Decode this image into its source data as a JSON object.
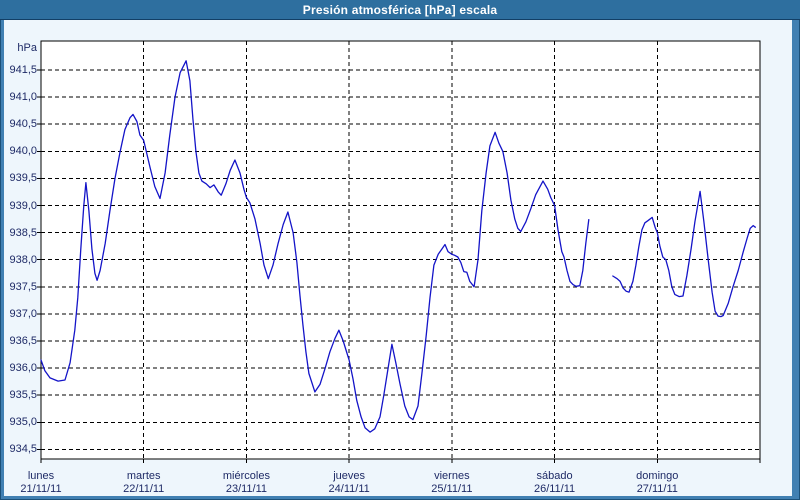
{
  "window": {
    "title": "Presión atmosférica [hPa] escala"
  },
  "colors": {
    "frame": "#4180b2",
    "title_bg": "#2e6f9f",
    "title_text": "#ffffff",
    "chart_bg": "#eef6fc",
    "plot_bg": "#ffffff",
    "grid": "#000000",
    "axis_text": "#1e2a66",
    "line": "#1414c8"
  },
  "chart_data": {
    "type": "line",
    "title": "Presión atmosférica [hPa] escala",
    "y_unit_label": "hPa",
    "ylabel": "hPa",
    "xlabel": "",
    "ylim": [
      934.32,
      942.03
    ],
    "grid": "dashed",
    "legend_position": "none",
    "y_ticks": [
      {
        "value": 941.5,
        "label": "941,5"
      },
      {
        "value": 941.0,
        "label": "941,0"
      },
      {
        "value": 940.5,
        "label": "940,5"
      },
      {
        "value": 940.0,
        "label": "940,0"
      },
      {
        "value": 939.5,
        "label": "939,5"
      },
      {
        "value": 939.0,
        "label": "939,0"
      },
      {
        "value": 938.5,
        "label": "938,5"
      },
      {
        "value": 938.0,
        "label": "938,0"
      },
      {
        "value": 937.5,
        "label": "937,5"
      },
      {
        "value": 937.0,
        "label": "937,0"
      },
      {
        "value": 936.5,
        "label": "936,5"
      },
      {
        "value": 936.0,
        "label": "936,0"
      },
      {
        "value": 935.5,
        "label": "935,5"
      },
      {
        "value": 935.0,
        "label": "935,0"
      },
      {
        "value": 934.5,
        "label": "934,5"
      }
    ],
    "x_days": [
      {
        "name": "lunes",
        "date": "21/11/11"
      },
      {
        "name": "martes",
        "date": "22/11/11"
      },
      {
        "name": "miércoles",
        "date": "23/11/11"
      },
      {
        "name": "jueves",
        "date": "24/11/11"
      },
      {
        "name": "viernes",
        "date": "25/11/11"
      },
      {
        "name": "sábado",
        "date": "26/11/11"
      },
      {
        "name": "domingo",
        "date": "27/11/11"
      }
    ],
    "days_span": 7,
    "x_unit": "hours_since_monday_00h",
    "segments": [
      [
        [
          0,
          936.15
        ],
        [
          0.9,
          935.95
        ],
        [
          2.1,
          935.82
        ],
        [
          4,
          935.76
        ],
        [
          5.6,
          935.78
        ],
        [
          6.8,
          936.1
        ],
        [
          7.9,
          936.7
        ],
        [
          8.6,
          937.3
        ],
        [
          9.3,
          938.2
        ],
        [
          10,
          939.0
        ],
        [
          10.5,
          939.42
        ],
        [
          11.2,
          938.9
        ],
        [
          11.9,
          938.2
        ],
        [
          12.6,
          937.75
        ],
        [
          13.1,
          937.62
        ],
        [
          13.8,
          937.8
        ],
        [
          15,
          938.3
        ],
        [
          16.1,
          938.9
        ],
        [
          17.3,
          939.5
        ],
        [
          18.5,
          940.0
        ],
        [
          19.6,
          940.4
        ],
        [
          20.8,
          940.62
        ],
        [
          21.5,
          940.68
        ],
        [
          22.4,
          940.55
        ],
        [
          23.1,
          940.3
        ],
        [
          24,
          940.2
        ],
        [
          25.5,
          939.7
        ],
        [
          26.6,
          939.35
        ],
        [
          27.8,
          939.13
        ],
        [
          29,
          939.6
        ],
        [
          30.1,
          940.3
        ],
        [
          31.3,
          941.0
        ],
        [
          32.5,
          941.45
        ],
        [
          33.9,
          941.67
        ],
        [
          34.8,
          941.3
        ],
        [
          35.5,
          940.6
        ],
        [
          36.2,
          940.0
        ],
        [
          36.9,
          939.6
        ],
        [
          37.6,
          939.45
        ],
        [
          38.6,
          939.4
        ],
        [
          39.5,
          939.33
        ],
        [
          40.4,
          939.38
        ],
        [
          41.4,
          939.25
        ],
        [
          42.1,
          939.19
        ],
        [
          43.2,
          939.4
        ],
        [
          44.2,
          939.65
        ],
        [
          45.3,
          939.84
        ],
        [
          46.5,
          939.6
        ],
        [
          47.4,
          939.3
        ],
        [
          48,
          939.15
        ],
        [
          48.8,
          939.05
        ],
        [
          50,
          938.75
        ],
        [
          51.2,
          938.3
        ],
        [
          52.1,
          937.9
        ],
        [
          53.1,
          937.65
        ],
        [
          54.2,
          937.9
        ],
        [
          55.4,
          938.3
        ],
        [
          56.6,
          938.65
        ],
        [
          57.7,
          938.88
        ],
        [
          58.9,
          938.5
        ],
        [
          59.8,
          937.95
        ],
        [
          60.5,
          937.35
        ],
        [
          61.2,
          936.8
        ],
        [
          61.9,
          936.3
        ],
        [
          62.6,
          935.9
        ],
        [
          64,
          935.56
        ],
        [
          65.2,
          935.7
        ],
        [
          66.4,
          936.0
        ],
        [
          67.5,
          936.3
        ],
        [
          68.7,
          936.55
        ],
        [
          69.6,
          936.7
        ],
        [
          70.6,
          936.5
        ],
        [
          72,
          936.15
        ],
        [
          72.9,
          935.8
        ],
        [
          73.8,
          935.4
        ],
        [
          74.8,
          935.1
        ],
        [
          75.7,
          934.9
        ],
        [
          76.9,
          934.82
        ],
        [
          78,
          934.88
        ],
        [
          79.2,
          935.1
        ],
        [
          80.1,
          935.5
        ],
        [
          81.1,
          936.0
        ],
        [
          82,
          936.44
        ],
        [
          82.9,
          936.1
        ],
        [
          83.9,
          935.7
        ],
        [
          85,
          935.3
        ],
        [
          86,
          935.1
        ],
        [
          86.9,
          935.05
        ],
        [
          88.1,
          935.3
        ],
        [
          89,
          935.9
        ],
        [
          90,
          936.6
        ],
        [
          90.9,
          937.3
        ],
        [
          91.8,
          937.9
        ],
        [
          92.8,
          938.1
        ],
        [
          93.7,
          938.2
        ],
        [
          94.4,
          938.28
        ],
        [
          95.1,
          938.15
        ],
        [
          96,
          938.1
        ],
        [
          96.7,
          938.08
        ],
        [
          97.4,
          938.05
        ],
        [
          98.1,
          937.95
        ],
        [
          98.8,
          937.78
        ],
        [
          99.5,
          937.77
        ],
        [
          100.2,
          937.6
        ],
        [
          101.2,
          937.5
        ],
        [
          102.1,
          938.0
        ],
        [
          103,
          938.9
        ],
        [
          104,
          939.6
        ],
        [
          104.9,
          940.1
        ],
        [
          106.1,
          940.35
        ],
        [
          107,
          940.15
        ],
        [
          107.9,
          940.0
        ],
        [
          108.9,
          939.6
        ],
        [
          109.8,
          939.1
        ],
        [
          110.7,
          938.75
        ],
        [
          111.4,
          938.58
        ],
        [
          112.1,
          938.52
        ],
        [
          113.3,
          938.7
        ],
        [
          114.5,
          938.95
        ],
        [
          115.6,
          939.2
        ],
        [
          117.3,
          939.45
        ],
        [
          118.4,
          939.3
        ],
        [
          119.1,
          939.15
        ],
        [
          120,
          939.0
        ],
        [
          120.8,
          938.55
        ],
        [
          121.7,
          938.15
        ],
        [
          122.2,
          938.05
        ],
        [
          122.9,
          937.8
        ],
        [
          123.6,
          937.6
        ],
        [
          124.3,
          937.54
        ],
        [
          125,
          937.51
        ],
        [
          125.9,
          937.52
        ],
        [
          126.6,
          937.8
        ],
        [
          127.3,
          938.3
        ],
        [
          128,
          938.74
        ]
      ],
      [
        [
          133.6,
          937.7
        ],
        [
          134.6,
          937.65
        ],
        [
          135.3,
          937.6
        ],
        [
          136,
          937.48
        ],
        [
          136.7,
          937.42
        ],
        [
          137.4,
          937.4
        ],
        [
          138.3,
          937.6
        ],
        [
          139,
          937.9
        ],
        [
          139.7,
          938.25
        ],
        [
          140.4,
          938.55
        ],
        [
          141.1,
          938.68
        ],
        [
          141.8,
          938.72
        ],
        [
          142.8,
          938.78
        ],
        [
          143.5,
          938.6
        ],
        [
          144,
          938.5
        ],
        [
          144.6,
          938.25
        ],
        [
          145.3,
          938.05
        ],
        [
          146,
          938.0
        ],
        [
          146.7,
          937.8
        ],
        [
          147.4,
          937.5
        ],
        [
          148.1,
          937.36
        ],
        [
          149.1,
          937.32
        ],
        [
          150,
          937.33
        ],
        [
          150.9,
          937.7
        ],
        [
          151.9,
          938.2
        ],
        [
          152.8,
          938.7
        ],
        [
          154,
          939.26
        ],
        [
          154.9,
          938.7
        ],
        [
          155.9,
          938.0
        ],
        [
          156.8,
          937.4
        ],
        [
          157.5,
          937.05
        ],
        [
          158.2,
          936.96
        ],
        [
          158.9,
          936.95
        ],
        [
          159.4,
          936.97
        ],
        [
          160.6,
          937.2
        ],
        [
          161.7,
          937.5
        ],
        [
          162.9,
          937.8
        ],
        [
          164.1,
          938.15
        ],
        [
          165,
          938.4
        ],
        [
          165.7,
          938.58
        ],
        [
          166.4,
          938.63
        ],
        [
          166.9,
          938.6
        ]
      ]
    ]
  }
}
